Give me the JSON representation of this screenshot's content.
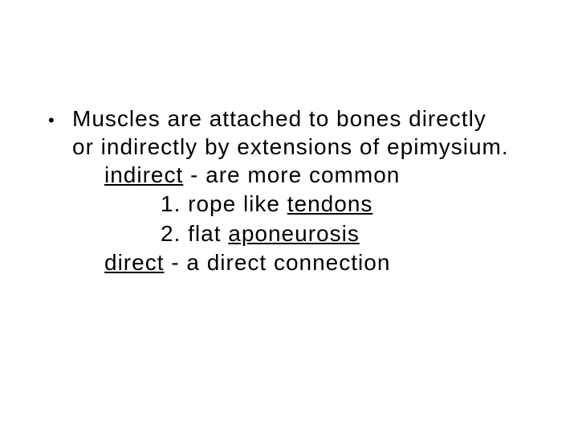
{
  "slide": {
    "background_color": "#ffffff",
    "text_color": "#000000",
    "font_family": "Comic Sans MS",
    "base_fontsize_pt": 21,
    "bullet": {
      "glyph": "•",
      "line1": "Muscles are attached to bones directly",
      "line2": "or indirectly by extensions of epimysium."
    },
    "indirect": {
      "label": "indirect",
      "rest": " - are more common"
    },
    "item1": {
      "num": "1.  rope like ",
      "underlined": "tendons"
    },
    "item2": {
      "num": "2.  flat ",
      "underlined": "aponeurosis"
    },
    "direct": {
      "label": "direct",
      "rest": " - a direct connection"
    }
  }
}
